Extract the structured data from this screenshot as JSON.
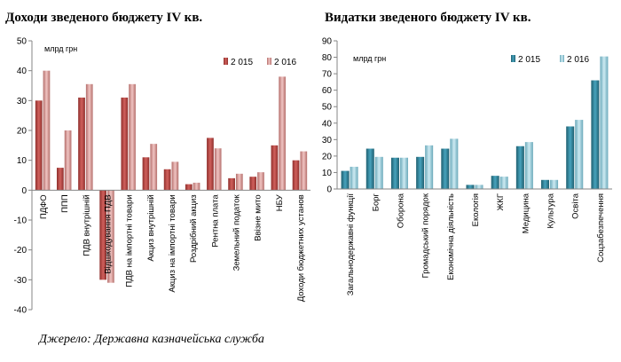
{
  "source": "Джерело: Державна казначейська служба",
  "chart_data": [
    {
      "type": "bar",
      "title": "Доходи зведеного бюджету IV кв.",
      "unit": "млрд грн",
      "categories": [
        "ПДФО",
        "ППП",
        "ПДВ внутрішній",
        "Відшкодування ПДВ",
        "ПДВ на імпортні товари",
        "Акциз внутрішній",
        "Акциз на імпортні товари",
        "Роздрібний акциз",
        "Рентна плата",
        "Земельний податок",
        "Ввізне мито",
        "НБУ",
        "Доходи бюджетних установ"
      ],
      "series": [
        {
          "name": "2 015",
          "values": [
            30,
            7.5,
            31,
            -30,
            31,
            11,
            7,
            2,
            17.5,
            4,
            4.5,
            15,
            10
          ],
          "color": "#c0504d"
        },
        {
          "name": "2 016",
          "values": [
            40,
            20,
            35.5,
            -31,
            35.5,
            15.5,
            9.5,
            2.5,
            14,
            5.5,
            6,
            38,
            13
          ],
          "color": "#d99694"
        }
      ],
      "ylim": [
        -40,
        50
      ],
      "yticks": [
        -40,
        -30,
        -20,
        -10,
        0,
        10,
        20,
        30,
        40,
        50
      ],
      "grid": false,
      "legend": "top-right"
    },
    {
      "type": "bar",
      "title": "Видатки зведеного бюджету IV кв.",
      "unit": "млрд грн",
      "categories": [
        "Загальнодержавні функції",
        "Борг",
        "Оборона",
        "Громадський порядок",
        "Економічна діяльність",
        "Екологія",
        "ЖКГ",
        "Медицина",
        "Культура",
        "Освіта",
        "Соцзабезпечення"
      ],
      "series": [
        {
          "name": "2 015",
          "values": [
            11,
            24.5,
            19,
            19.5,
            24.5,
            2.5,
            8,
            26,
            5.5,
            38,
            66
          ],
          "color": "#31859c"
        },
        {
          "name": "2 016",
          "values": [
            13.5,
            19.5,
            19,
            26.5,
            30.5,
            2.5,
            7.5,
            28.5,
            5.5,
            42,
            80.5
          ],
          "color": "#93cddd"
        }
      ],
      "ylim": [
        0,
        90
      ],
      "yticks": [
        0,
        10,
        20,
        30,
        40,
        50,
        60,
        70,
        80,
        90
      ],
      "grid": false,
      "legend": "top-right"
    }
  ]
}
